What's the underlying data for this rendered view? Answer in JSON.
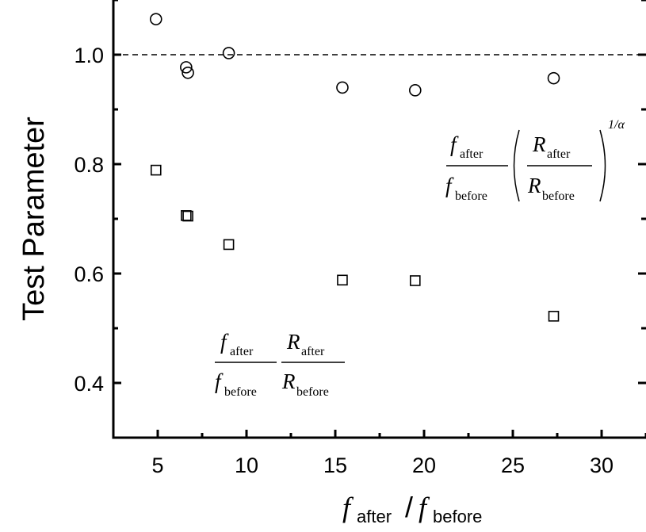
{
  "chart_data": {
    "type": "scatter",
    "ylabel": "Test Parameter",
    "xlim": [
      2.5,
      32.5
    ],
    "ylim": [
      0.3,
      1.1
    ],
    "xticks": [
      5,
      10,
      15,
      20,
      25,
      30
    ],
    "yticks": [
      0.4,
      0.6,
      0.8,
      1.0
    ],
    "ytick_labels": [
      "0.4",
      "0.6",
      "0.8",
      "1.0"
    ],
    "reference_line": {
      "y": 1.0,
      "style": "dashed"
    },
    "series": [
      {
        "marker": "circle",
        "points": [
          {
            "x": 4.9,
            "y": 1.065
          },
          {
            "x": 6.6,
            "y": 0.977
          },
          {
            "x": 6.7,
            "y": 0.967
          },
          {
            "x": 9.0,
            "y": 1.003
          },
          {
            "x": 15.4,
            "y": 0.94
          },
          {
            "x": 19.5,
            "y": 0.935
          },
          {
            "x": 27.3,
            "y": 0.957
          }
        ]
      },
      {
        "marker": "square",
        "points": [
          {
            "x": 4.9,
            "y": 0.789
          },
          {
            "x": 6.6,
            "y": 0.706
          },
          {
            "x": 6.7,
            "y": 0.705
          },
          {
            "x": 9.0,
            "y": 0.653
          },
          {
            "x": 15.4,
            "y": 0.588
          },
          {
            "x": 19.5,
            "y": 0.587
          },
          {
            "x": 27.3,
            "y": 0.522
          }
        ]
      }
    ],
    "annotations": {
      "circle_formula": {
        "f_after": "f",
        "sub_after": "after",
        "f_before": "f",
        "sub_before": "before",
        "r_after": "R",
        "r_sub_after": "after",
        "r_before": "R",
        "r_sub_before": "before",
        "exponent": "1/α"
      },
      "square_formula": {
        "f_after": "f",
        "sub_after": "after",
        "f_before": "f",
        "sub_before": "before",
        "r_after": "R",
        "r_sub_after": "after",
        "r_before": "R",
        "r_sub_before": "before"
      }
    },
    "xlabel": {
      "f1": "f",
      "sub1": "after",
      "slash": "/",
      "f2": "f",
      "sub2": "before"
    }
  }
}
